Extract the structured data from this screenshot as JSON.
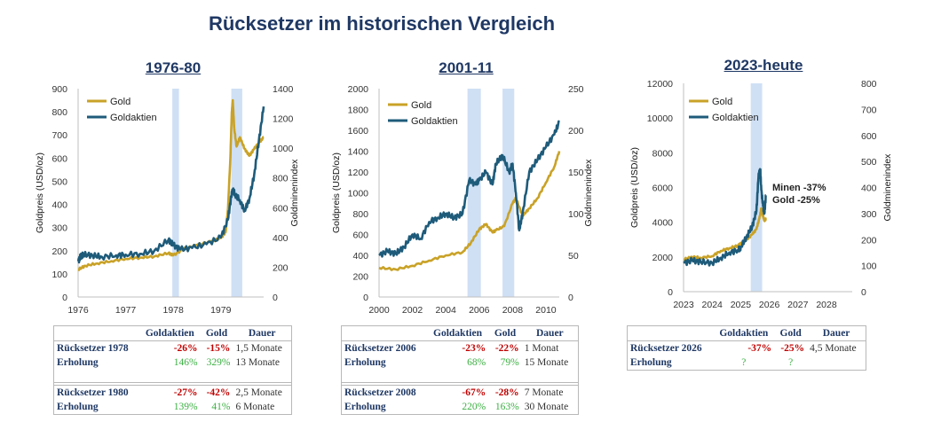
{
  "title": "Rücksetzer im historischen Vergleich",
  "colors": {
    "gold": "#C9A227",
    "miners": "#1E5B7A",
    "shade": "#CFE0F5",
    "negative": "#C00000",
    "positive": "#3CB043",
    "title": "#1F3864"
  },
  "chart_data": [
    {
      "type": "line",
      "title": "1976-80",
      "ylabel": "Goldpreis (USD/oz)",
      "y2label": "Goldminenindex",
      "xlim": [
        1976,
        1979.9
      ],
      "ylim": [
        0,
        900
      ],
      "y2lim": [
        0,
        1400
      ],
      "xticks": [
        "1976",
        "1977",
        "1978",
        "1979"
      ],
      "yticks": [
        "0",
        "100",
        "200",
        "300",
        "400",
        "500",
        "600",
        "700",
        "800",
        "900"
      ],
      "y2ticks": [
        "0",
        "200",
        "400",
        "600",
        "800",
        "1000",
        "1200",
        "1400"
      ],
      "legend": [
        "Gold",
        "Goldaktien"
      ],
      "shaded": [
        [
          1977.98,
          1978.12
        ],
        [
          1979.22,
          1979.45
        ]
      ],
      "series": [
        {
          "name": "Gold",
          "axis": "left",
          "points": [
            [
              1976.0,
              118
            ],
            [
              1976.15,
              135
            ],
            [
              1976.4,
              145
            ],
            [
              1976.7,
              155
            ],
            [
              1977.0,
              165
            ],
            [
              1977.3,
              170
            ],
            [
              1977.6,
              175
            ],
            [
              1977.9,
              190
            ],
            [
              1978.0,
              180
            ],
            [
              1978.2,
              205
            ],
            [
              1978.5,
              225
            ],
            [
              1978.8,
              240
            ],
            [
              1979.0,
              255
            ],
            [
              1979.1,
              280
            ],
            [
              1979.15,
              380
            ],
            [
              1979.2,
              600
            ],
            [
              1979.23,
              800
            ],
            [
              1979.25,
              850
            ],
            [
              1979.28,
              730
            ],
            [
              1979.33,
              650
            ],
            [
              1979.4,
              690
            ],
            [
              1979.5,
              640
            ],
            [
              1979.6,
              610
            ],
            [
              1979.7,
              640
            ],
            [
              1979.8,
              665
            ],
            [
              1979.9,
              690
            ]
          ]
        },
        {
          "name": "Goldaktien",
          "axis": "right",
          "points": [
            [
              1976.0,
              240
            ],
            [
              1976.05,
              270
            ],
            [
              1976.1,
              285
            ],
            [
              1976.3,
              280
            ],
            [
              1976.5,
              270
            ],
            [
              1976.8,
              280
            ],
            [
              1977.0,
              285
            ],
            [
              1977.3,
              290
            ],
            [
              1977.6,
              310
            ],
            [
              1977.9,
              385
            ],
            [
              1978.0,
              350
            ],
            [
              1978.15,
              320
            ],
            [
              1978.4,
              330
            ],
            [
              1978.7,
              355
            ],
            [
              1979.0,
              400
            ],
            [
              1979.15,
              520
            ],
            [
              1979.22,
              680
            ],
            [
              1979.25,
              720
            ],
            [
              1979.3,
              690
            ],
            [
              1979.4,
              650
            ],
            [
              1979.5,
              580
            ],
            [
              1979.6,
              660
            ],
            [
              1979.7,
              820
            ],
            [
              1979.8,
              1050
            ],
            [
              1979.9,
              1280
            ]
          ]
        }
      ]
    },
    {
      "type": "line",
      "title": "2001-11",
      "ylabel": "Goldpreis (USD/oz)",
      "y2label": "Goldminenindex",
      "xlim": [
        2000,
        2010.8
      ],
      "ylim": [
        0,
        2000
      ],
      "y2lim": [
        0,
        250
      ],
      "xticks": [
        "2000",
        "2002",
        "2004",
        "2006",
        "2008",
        "2010"
      ],
      "yticks": [
        "0",
        "200",
        "400",
        "600",
        "800",
        "1000",
        "1200",
        "1400",
        "1600",
        "1800",
        "2000"
      ],
      "y2ticks": [
        "0",
        "50",
        "100",
        "150",
        "200",
        "250"
      ],
      "legend": [
        "Gold",
        "Goldaktien"
      ],
      "shaded": [
        [
          2005.3,
          2006.1
        ],
        [
          2007.4,
          2008.1
        ]
      ],
      "series": [
        {
          "name": "Gold",
          "axis": "left",
          "points": [
            [
              2000.0,
              280
            ],
            [
              2001.0,
              265
            ],
            [
              2002.0,
              300
            ],
            [
              2003.0,
              350
            ],
            [
              2004.0,
              400
            ],
            [
              2005.0,
              430
            ],
            [
              2005.5,
              520
            ],
            [
              2006.0,
              650
            ],
            [
              2006.4,
              700
            ],
            [
              2006.8,
              620
            ],
            [
              2007.0,
              640
            ],
            [
              2007.5,
              680
            ],
            [
              2008.0,
              900
            ],
            [
              2008.2,
              950
            ],
            [
              2008.6,
              780
            ],
            [
              2009.0,
              850
            ],
            [
              2009.5,
              950
            ],
            [
              2010.0,
              1100
            ],
            [
              2010.5,
              1250
            ],
            [
              2010.8,
              1400
            ]
          ]
        },
        {
          "name": "Goldaktien",
          "axis": "right",
          "points": [
            [
              2000.0,
              50
            ],
            [
              2000.5,
              55
            ],
            [
              2001.0,
              52
            ],
            [
              2001.5,
              60
            ],
            [
              2002.0,
              75
            ],
            [
              2002.5,
              70
            ],
            [
              2003.0,
              90
            ],
            [
              2003.5,
              95
            ],
            [
              2004.0,
              100
            ],
            [
              2004.5,
              95
            ],
            [
              2005.0,
              100
            ],
            [
              2005.4,
              140
            ],
            [
              2005.8,
              135
            ],
            [
              2006.0,
              140
            ],
            [
              2006.4,
              150
            ],
            [
              2006.8,
              135
            ],
            [
              2007.0,
              160
            ],
            [
              2007.4,
              170
            ],
            [
              2007.8,
              150
            ],
            [
              2008.0,
              160
            ],
            [
              2008.2,
              125
            ],
            [
              2008.4,
              80
            ],
            [
              2008.6,
              100
            ],
            [
              2009.0,
              150
            ],
            [
              2009.5,
              165
            ],
            [
              2010.0,
              180
            ],
            [
              2010.5,
              195
            ],
            [
              2010.8,
              210
            ]
          ]
        }
      ]
    },
    {
      "type": "line",
      "title": "2023-heute",
      "ylabel": "Goldpreis (USD/oz)",
      "y2label": "Goldminenindex",
      "xlim": [
        2023,
        2028.9
      ],
      "ylim": [
        0,
        12000
      ],
      "y2lim": [
        0,
        800
      ],
      "xticks": [
        "2023",
        "2024",
        "2025",
        "2026",
        "2027",
        "2028"
      ],
      "yticks": [
        "0",
        "2000",
        "4000",
        "6000",
        "8000",
        "10000",
        "12000"
      ],
      "y2ticks": [
        "0",
        "100",
        "200",
        "300",
        "400",
        "500",
        "600",
        "700",
        "800"
      ],
      "legend": [
        "Gold",
        "Goldaktien"
      ],
      "shaded": [
        [
          2025.35,
          2025.75
        ]
      ],
      "annotations": [
        {
          "text": "Minen  -37%",
          "series": "Goldaktien"
        },
        {
          "text": "Gold -25%",
          "series": "Gold"
        }
      ],
      "series": [
        {
          "name": "Gold",
          "axis": "left",
          "points": [
            [
              2023.0,
              1850
            ],
            [
              2023.3,
              2000
            ],
            [
              2023.6,
              1950
            ],
            [
              2024.0,
              2050
            ],
            [
              2024.3,
              2350
            ],
            [
              2024.6,
              2500
            ],
            [
              2024.9,
              2650
            ],
            [
              2025.0,
              2750
            ],
            [
              2025.2,
              3000
            ],
            [
              2025.4,
              3300
            ],
            [
              2025.55,
              3600
            ],
            [
              2025.65,
              4200
            ],
            [
              2025.72,
              4800
            ],
            [
              2025.78,
              4350
            ],
            [
              2025.83,
              4100
            ],
            [
              2025.88,
              4200
            ]
          ]
        },
        {
          "name": "Goldaktien",
          "axis": "right",
          "points": [
            [
              2023.0,
              110
            ],
            [
              2023.3,
              120
            ],
            [
              2023.6,
              115
            ],
            [
              2024.0,
              110
            ],
            [
              2024.3,
              130
            ],
            [
              2024.6,
              150
            ],
            [
              2024.9,
              160
            ],
            [
              2025.0,
              170
            ],
            [
              2025.2,
              210
            ],
            [
              2025.4,
              250
            ],
            [
              2025.55,
              310
            ],
            [
              2025.62,
              440
            ],
            [
              2025.68,
              470
            ],
            [
              2025.72,
              390
            ],
            [
              2025.78,
              330
            ],
            [
              2025.83,
              300
            ],
            [
              2025.88,
              370
            ]
          ]
        }
      ]
    }
  ],
  "tables": [
    {
      "headers": [
        "",
        "Goldaktien",
        "Gold",
        "Dauer"
      ],
      "blocks": [
        [
          [
            "Rücksetzer 1978",
            "-26%",
            "-15%",
            "1,5 Monate"
          ],
          [
            "Erholung",
            "146%",
            "329%",
            "13 Monate"
          ]
        ],
        [
          [
            "Rücksetzer 1980",
            "-27%",
            "-42%",
            "2,5 Monate"
          ],
          [
            "Erholung",
            "139%",
            "41%",
            "6 Monate"
          ]
        ]
      ]
    },
    {
      "headers": [
        "",
        "Goldaktien",
        "Gold",
        "Dauer"
      ],
      "blocks": [
        [
          [
            "Rücksetzer 2006",
            "-23%",
            "-22%",
            "1 Monat"
          ],
          [
            "Erholung",
            "68%",
            "79%",
            "15 Monate"
          ]
        ],
        [
          [
            "Rücksetzer 2008",
            "-67%",
            "-28%",
            "7 Monate"
          ],
          [
            "Erholung",
            "220%",
            "163%",
            "30 Monate"
          ]
        ]
      ]
    },
    {
      "headers": [
        "",
        "Goldaktien",
        "Gold",
        "Dauer"
      ],
      "blocks": [
        [
          [
            "Rücksetzer 2026",
            "-37%",
            "-25%",
            "4,5 Monate"
          ],
          [
            "Erholung",
            "?",
            "?",
            ""
          ]
        ]
      ]
    }
  ]
}
